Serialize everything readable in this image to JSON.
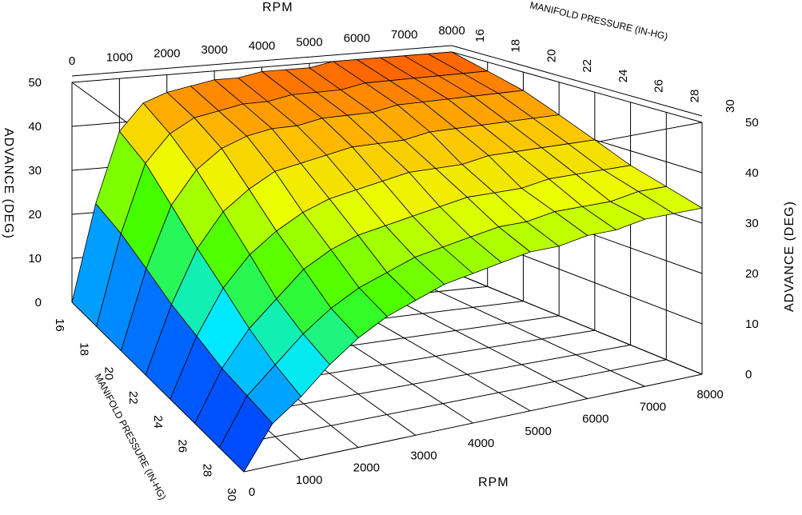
{
  "chart_data": {
    "type": "surface3d",
    "x_axis": {
      "label": "RPM",
      "ticks": [
        0,
        1000,
        2000,
        3000,
        4000,
        5000,
        6000,
        7000,
        8000
      ],
      "range": [
        0,
        8000
      ]
    },
    "y_axis": {
      "label": "MANIFOLD PRESSURE (IN-HG)",
      "ticks": [
        16,
        18,
        20,
        22,
        24,
        26,
        28,
        30
      ],
      "range": [
        16,
        30
      ]
    },
    "z_axis": {
      "label": "ADVANCE (DEG)",
      "ticks": [
        0,
        10,
        20,
        30,
        40,
        50
      ],
      "range": [
        0,
        50
      ]
    },
    "colormap": "jet (blue low, red high)",
    "grid": true,
    "rpm": [
      0,
      500,
      1000,
      1500,
      2000,
      2500,
      3000,
      3500,
      4000,
      4500,
      5000,
      5500,
      6000,
      6500,
      7000,
      7500,
      8000
    ],
    "map": [
      16,
      18,
      20,
      22,
      24,
      26,
      28,
      30
    ],
    "advance": [
      [
        0,
        22,
        38,
        44,
        46,
        47,
        48,
        48,
        49,
        49,
        49,
        50,
        50,
        50,
        50,
        50,
        50
      ],
      [
        0,
        20,
        35,
        41,
        44,
        45,
        46,
        46,
        47,
        47,
        47,
        48,
        48,
        48,
        48,
        48,
        48
      ],
      [
        0,
        17,
        30,
        37,
        41,
        43,
        44,
        44,
        45,
        45,
        45,
        46,
        46,
        46,
        46,
        46,
        46
      ],
      [
        0,
        14,
        25,
        32,
        36,
        39,
        40,
        41,
        42,
        42,
        42,
        43,
        43,
        43,
        43,
        43,
        43
      ],
      [
        0,
        12,
        21,
        27,
        31,
        34,
        36,
        37,
        38,
        39,
        39,
        39,
        40,
        40,
        40,
        40,
        40
      ],
      [
        0,
        10,
        17,
        22,
        27,
        30,
        32,
        33,
        34,
        35,
        36,
        36,
        36,
        37,
        37,
        37,
        37
      ],
      [
        0,
        9,
        14,
        19,
        23,
        26,
        28,
        30,
        31,
        32,
        33,
        33,
        34,
        34,
        34,
        35,
        35
      ],
      [
        0,
        8,
        12,
        17,
        21,
        24,
        26,
        28,
        29,
        30,
        31,
        31,
        32,
        32,
        33,
        33,
        33
      ]
    ]
  }
}
